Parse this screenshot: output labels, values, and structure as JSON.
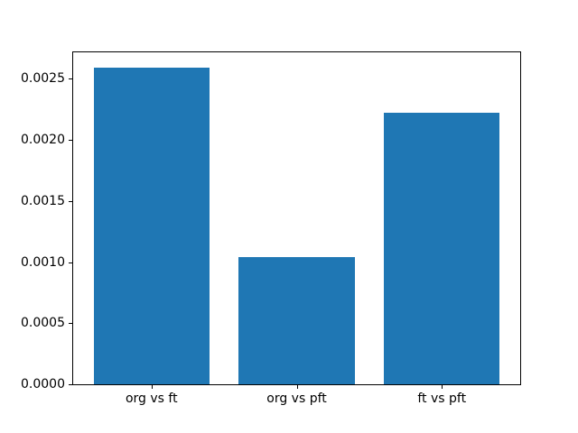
{
  "chart_data": {
    "type": "bar",
    "title": "",
    "xlabel": "",
    "ylabel": "",
    "categories": [
      "org vs ft",
      "org vs pft",
      "ft vs pft"
    ],
    "values": [
      0.00259,
      0.00104,
      0.00222
    ],
    "bar_color": "#1f77b4",
    "bar_width": 0.8,
    "xlim": [
      -0.54,
      2.54
    ],
    "ylim": [
      0,
      0.002717
    ],
    "grid": false,
    "legend": "none",
    "yticks": [
      {
        "value": 0.0,
        "label": "0.0000"
      },
      {
        "value": 0.0005,
        "label": "0.0005"
      },
      {
        "value": 0.001,
        "label": "0.0010"
      },
      {
        "value": 0.0015,
        "label": "0.0015"
      },
      {
        "value": 0.002,
        "label": "0.0020"
      },
      {
        "value": 0.0025,
        "label": "0.0025"
      }
    ]
  },
  "colors": {
    "background": "#ffffff",
    "spine": "#000000",
    "text": "#000000"
  }
}
